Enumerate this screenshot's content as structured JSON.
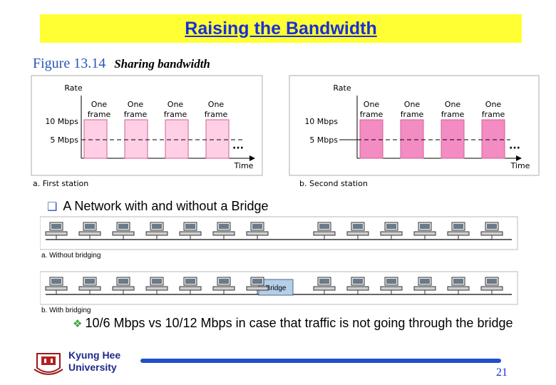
{
  "slide": {
    "title": "Raising the Bandwidth",
    "figure_number": "Figure 13.14",
    "figure_title": "Sharing bandwidth",
    "bullet": "A Network with and without a Bridge",
    "sub_bullet": "10/6 Mbps vs 10/12 Mbps in case that traffic is not going through the bridge",
    "university": [
      "Kyung Hee",
      "University"
    ],
    "page_number": "21"
  },
  "bandwidth_figure": {
    "axis_label_y": "Rate",
    "axis_label_x": "Time",
    "tick_10": "10 Mbps",
    "tick_5": "5 Mbps",
    "ellipsis": "···",
    "frame_label_line1": "One",
    "frame_label_line2": "frame",
    "first_panel_caption": "a. First station",
    "second_panel_caption": "b. Second station",
    "colors": {
      "first_frame": "#ffcfe6",
      "second_frame": "#f48cc4",
      "frame_stroke": "#d06090"
    }
  },
  "network_figure": {
    "without_caption": "a. Without bridging",
    "with_caption": "b. With bridging",
    "bridge_label": "Bridge"
  }
}
